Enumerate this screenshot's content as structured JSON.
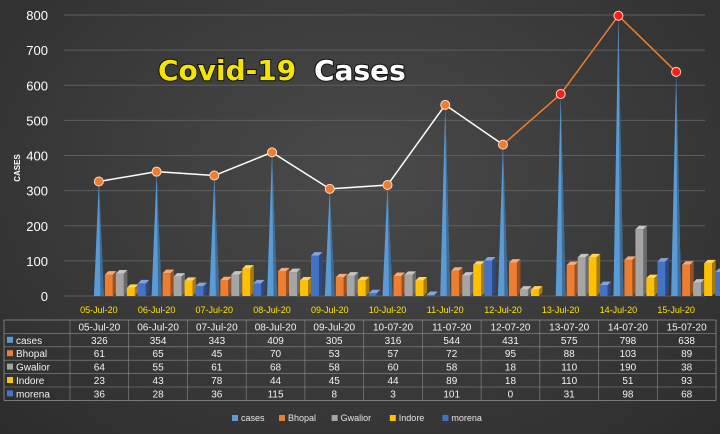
{
  "chart_data": {
    "type": "bar",
    "title_part1": "Covid-19",
    "title_part2": "Cases",
    "ylabel": "CASES",
    "ylim": [
      0,
      800
    ],
    "yticks": [
      0,
      100,
      200,
      300,
      400,
      500,
      600,
      700,
      800
    ],
    "categories": [
      "05-Jul-20",
      "06-Jul-20",
      "07-Jul-20",
      "08-Jul-20",
      "09-Jul-20",
      "10-Jul-20",
      "11-Jul-20",
      "12-Jul-20",
      "13-Jul-20",
      "14-Jul-20",
      "15-Jul-20"
    ],
    "table_columns": [
      "05-Jul-20",
      "06-Jul-20",
      "07-Jul-20",
      "08-Jul-20",
      "09-Jul-20",
      "10-07-20",
      "11-07-20",
      "12-07-20",
      "13-07-20",
      "14-07-20",
      "15-07-20"
    ],
    "series": [
      {
        "name": "cases",
        "color": "#5b9bd5",
        "values": [
          326,
          354,
          343,
          409,
          305,
          316,
          544,
          431,
          575,
          798,
          638
        ]
      },
      {
        "name": "Bhopal",
        "color": "#ed7d31",
        "values": [
          61,
          65,
          45,
          70,
          53,
          57,
          72,
          95,
          88,
          103,
          89
        ]
      },
      {
        "name": "Gwalior",
        "color": "#a5a5a5",
        "values": [
          64,
          55,
          61,
          68,
          58,
          60,
          58,
          18,
          110,
          190,
          38
        ]
      },
      {
        "name": "Indore",
        "color": "#ffc000",
        "values": [
          23,
          43,
          78,
          44,
          45,
          44,
          89,
          18,
          110,
          51,
          93
        ]
      },
      {
        "name": "morena",
        "color": "#4472c4",
        "values": [
          36,
          28,
          36,
          115,
          8,
          3,
          101,
          0,
          31,
          98,
          68
        ]
      }
    ],
    "line_colors": {
      "early": "#ffffff",
      "late": "#ed7d31"
    },
    "grid": true,
    "legend_position": "bottom"
  }
}
